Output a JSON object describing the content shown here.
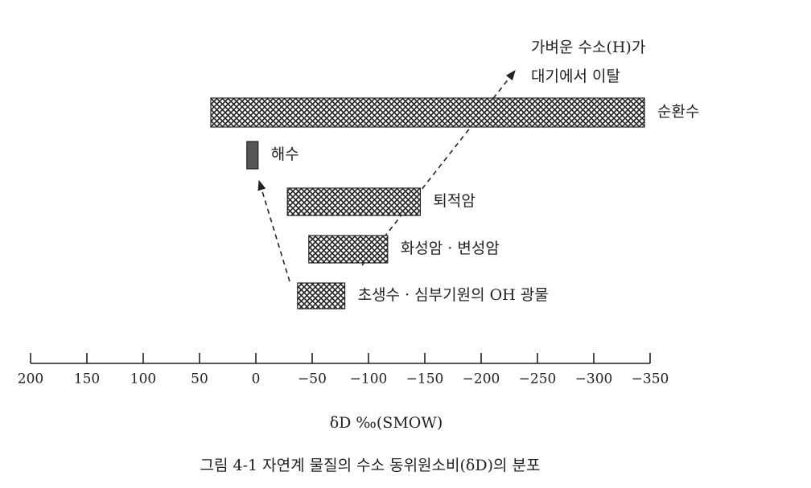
{
  "chart_data": {
    "type": "range-bar",
    "title": "그림 4-1  자연계 물질의 수소 동위원소비(δD)의 분포",
    "xlabel": "δD ‰(SMOW)",
    "annotations": [
      "가벼운 수소(H)가",
      "대기에서 이탈"
    ],
    "categories": [
      "순환수",
      "해수",
      "퇴적암",
      "화성암 · 변성암",
      "초생수 · 심부기원의 OH 광물"
    ],
    "values": [
      [
        40,
        -345
      ],
      [
        8,
        -2
      ],
      [
        -28,
        -146
      ],
      [
        -47,
        -117
      ],
      [
        -37,
        -79
      ]
    ],
    "colors": [
      "hatch",
      "#555555",
      "hatch",
      "hatch",
      "hatch"
    ],
    "xlim": [
      200,
      -350
    ],
    "xticks": [
      200,
      150,
      100,
      50,
      0,
      {
        "value": -50,
        "label": "−50"
      },
      {
        "value": -100,
        "label": "−100"
      },
      {
        "value": -150,
        "label": "−150"
      },
      {
        "value": -200,
        "label": "−200"
      },
      {
        "value": -250,
        "label": "−250"
      },
      {
        "value": -300,
        "label": "−300"
      },
      {
        "value": -350,
        "label": "−350"
      }
    ]
  }
}
